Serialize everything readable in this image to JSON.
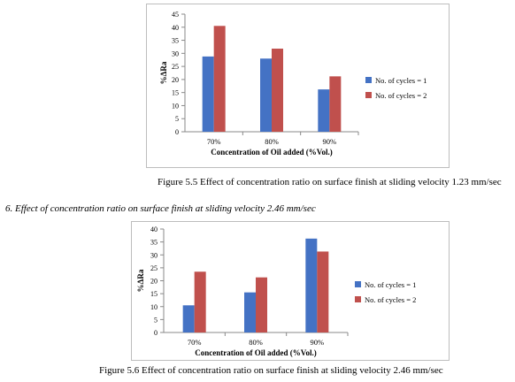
{
  "chart_data": [
    {
      "type": "bar",
      "ylabel": "%ΔRa",
      "xlabel": "Concentration of Oil added (%Vol.)",
      "categories": [
        "70%",
        "80%",
        "90%"
      ],
      "yticks": [
        "0",
        "5",
        "10",
        "15",
        "20",
        "25",
        "30",
        "35",
        "40",
        "45"
      ],
      "ylim": [
        0,
        45
      ],
      "series": [
        {
          "name": "No. of cycles = 1",
          "color": "#4472c4",
          "values": [
            28.8,
            28.0,
            16.2
          ]
        },
        {
          "name": "No. of cycles = 2",
          "color": "#c0504d",
          "values": [
            40.5,
            31.8,
            21.2
          ]
        }
      ],
      "legend": "right",
      "grid": false
    },
    {
      "type": "bar",
      "ylabel": "%ΔRa",
      "xlabel": "Concentration of Oil added (%Vol.)",
      "categories": [
        "70%",
        "80%",
        "90%"
      ],
      "yticks": [
        "0",
        "5",
        "10",
        "15",
        "20",
        "25",
        "30",
        "35",
        "40"
      ],
      "ylim": [
        0,
        40
      ],
      "series": [
        {
          "name": "No. of cycles = 1",
          "color": "#4472c4",
          "values": [
            10.5,
            15.5,
            36.3
          ]
        },
        {
          "name": "No. of cycles = 2",
          "color": "#c0504d",
          "values": [
            23.5,
            21.3,
            31.3
          ]
        }
      ],
      "legend": "right",
      "grid": false
    }
  ],
  "captions": {
    "fig1": "Figure 5.5 Effect of concentration ratio on surface finish at sliding velocity 1.23 mm/sec",
    "section6": "6. Effect of concentration ratio on surface finish at sliding velocity 2.46 mm/sec",
    "fig2": "Figure 5.6 Effect of concentration ratio on surface finish at sliding velocity 2.46 mm/sec"
  }
}
